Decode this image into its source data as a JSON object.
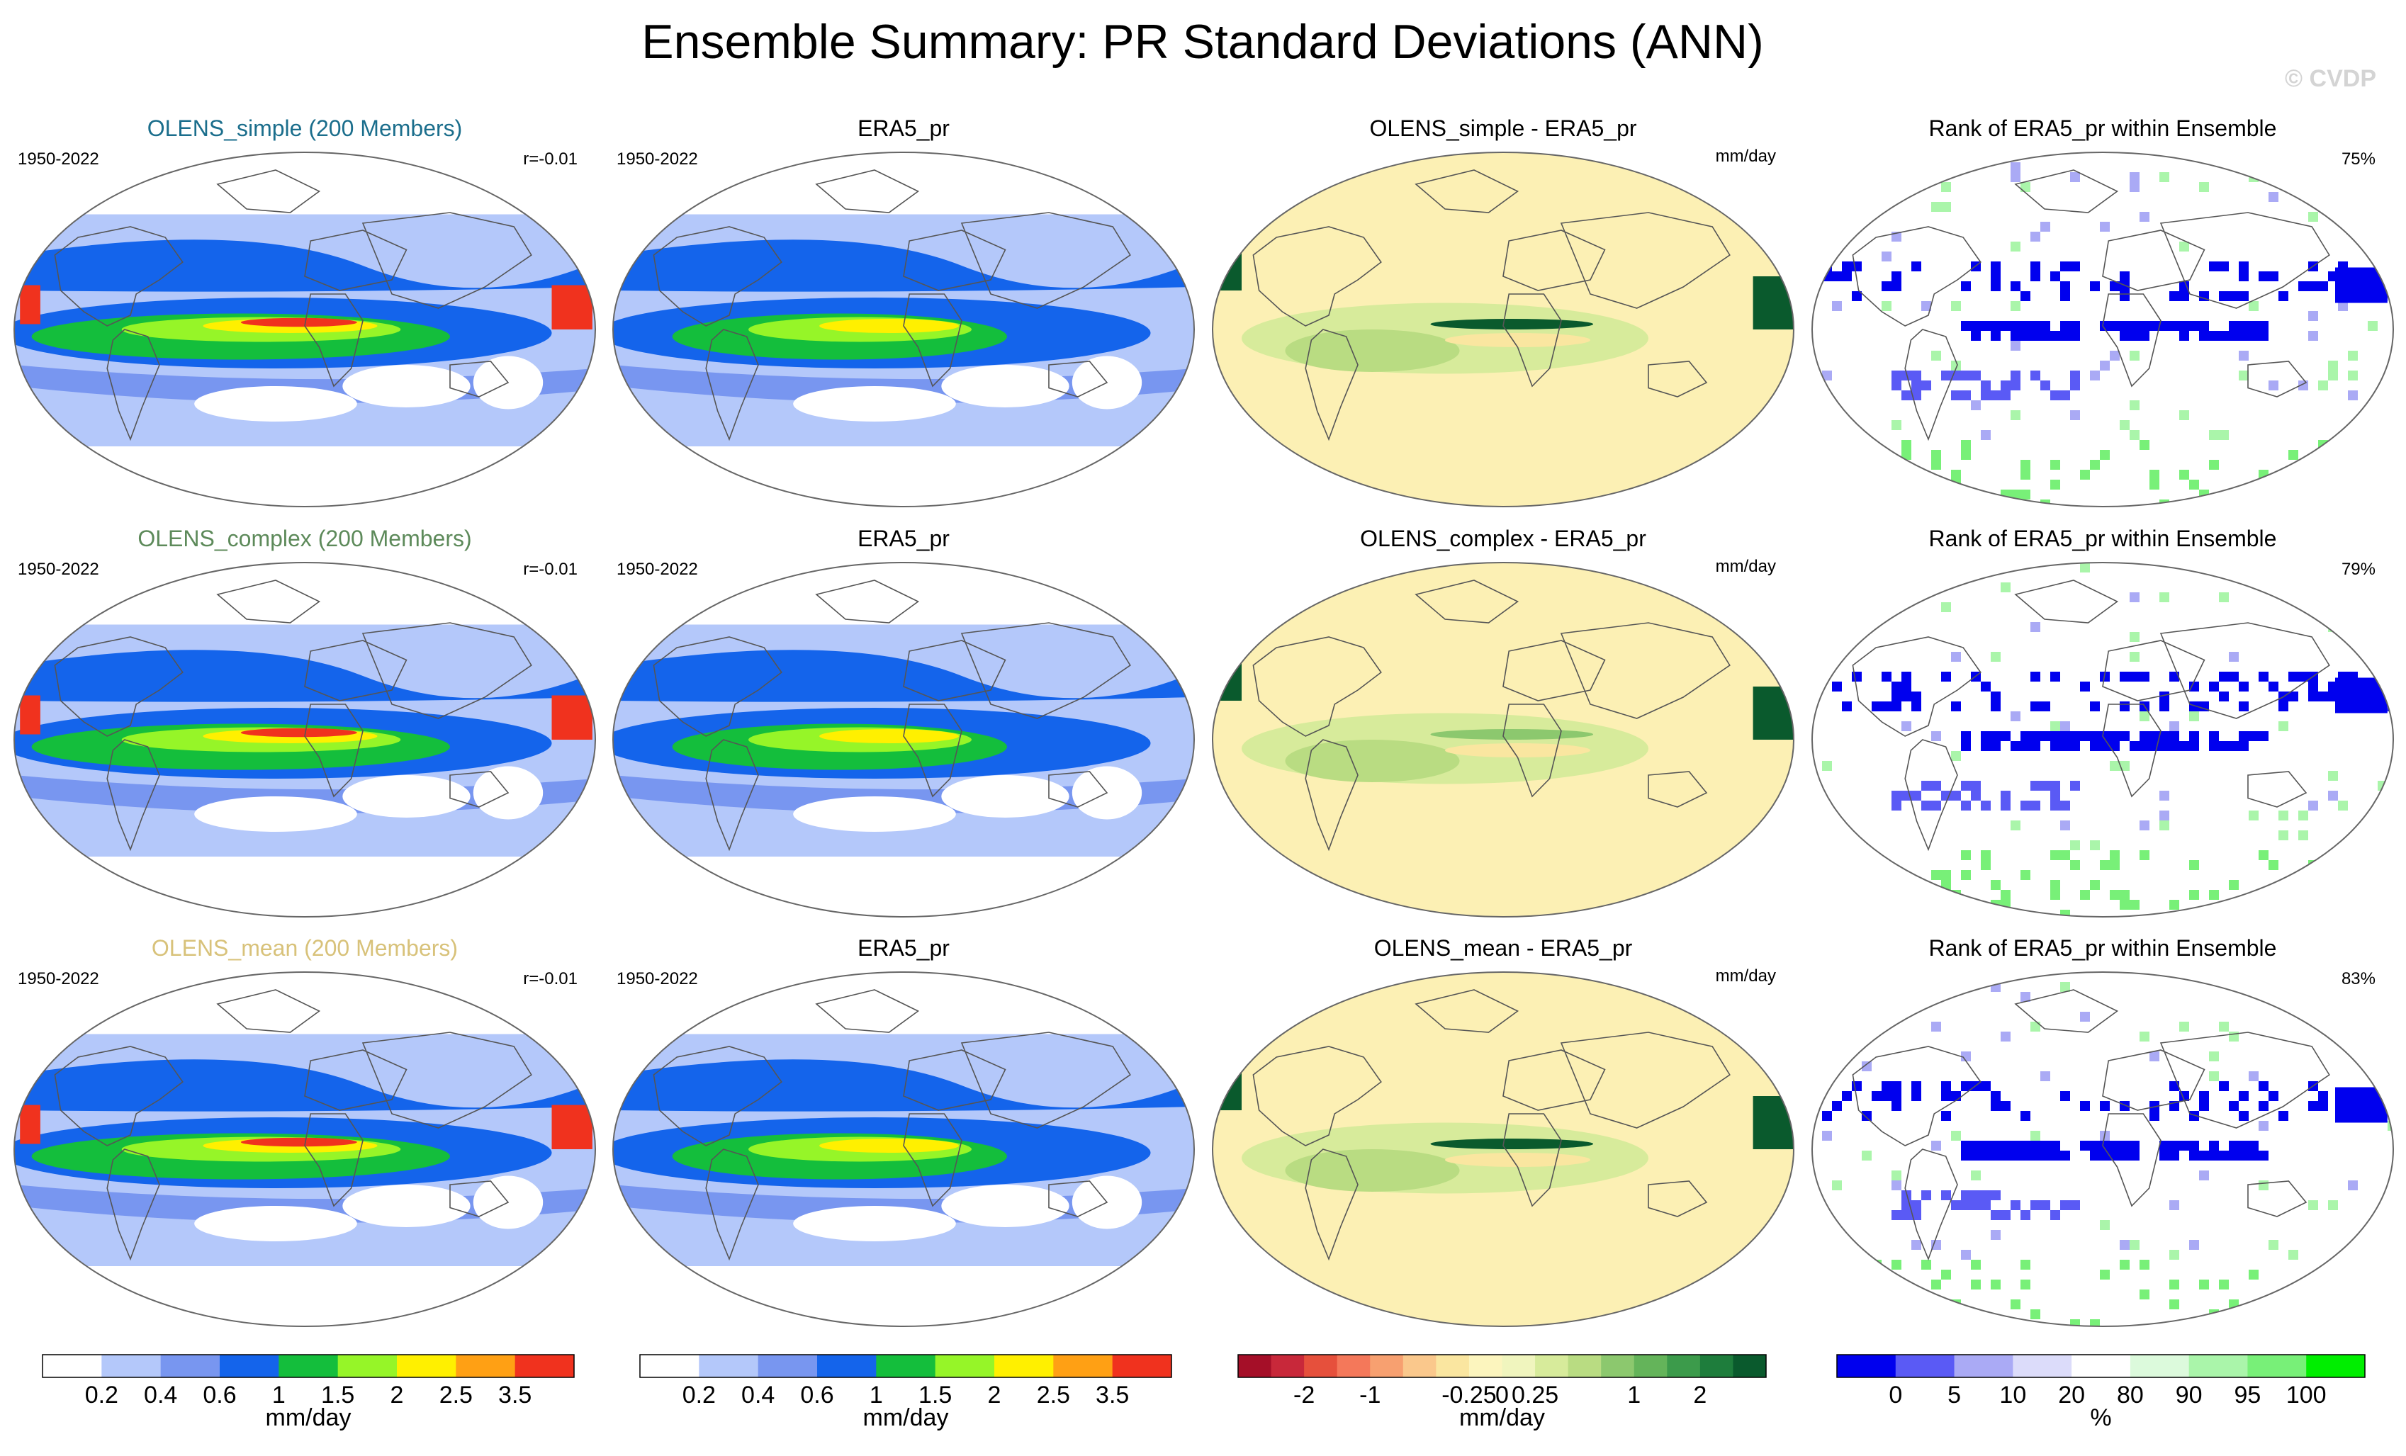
{
  "title": "Ensemble Summary: PR Standard Deviations (ANN)",
  "watermark": "© CVDP",
  "map_labels": {
    "period": "1950-2022",
    "units": "mm/day"
  },
  "rows": [
    {
      "ensemble_title": "OLENS_simple (200 Members)",
      "ensemble_color": "#1b6e8c",
      "pattern_corr": "r=-0.01",
      "obs_title": "ERA5_pr",
      "diff_title": "OLENS_simple - ERA5_pr",
      "rank_title": "Rank of ERA5_pr within Ensemble",
      "rank_pct": "75%"
    },
    {
      "ensemble_title": "OLENS_complex (200 Members)",
      "ensemble_color": "#5d8a5a",
      "pattern_corr": "r=-0.01",
      "obs_title": "ERA5_pr",
      "diff_title": "OLENS_complex - ERA5_pr",
      "rank_title": "Rank of ERA5_pr within Ensemble",
      "rank_pct": "79%"
    },
    {
      "ensemble_title": "OLENS_mean (200 Members)",
      "ensemble_color": "#d8c27a",
      "pattern_corr": "r=-0.01",
      "obs_title": "ERA5_pr",
      "diff_title": "OLENS_mean - ERA5_pr",
      "rank_title": "Rank of ERA5_pr within Ensemble",
      "rank_pct": "83%"
    }
  ],
  "chart_data": {
    "type": "heatmap",
    "projection": "Robinson global maps",
    "variable": "PR standard deviation",
    "season": "ANN",
    "period": "1950-2022",
    "colorbars": [
      {
        "name": "std",
        "units": "mm/day",
        "colors": [
          "#ffffff",
          "#b4c8fa",
          "#7896f0",
          "#1464eb",
          "#14be3c",
          "#96f528",
          "#fff000",
          "#ffa014",
          "#f0321e"
        ],
        "tick_labels": [
          "0.2",
          "0.4",
          "0.6",
          "1",
          "1.5",
          "2",
          "2.5",
          "3.5"
        ]
      },
      {
        "name": "std",
        "units": "mm/day",
        "colors": [
          "#ffffff",
          "#b4c8fa",
          "#7896f0",
          "#1464eb",
          "#14be3c",
          "#96f528",
          "#fff000",
          "#ffa014",
          "#f0321e"
        ],
        "tick_labels": [
          "0.2",
          "0.4",
          "0.6",
          "1",
          "1.5",
          "2",
          "2.5",
          "3.5"
        ]
      },
      {
        "name": "difference",
        "units": "mm/day",
        "colors": [
          "#a50f28",
          "#c8283a",
          "#e6503c",
          "#f4785a",
          "#f7a070",
          "#fac88c",
          "#fae6a0",
          "#fcf5be",
          "#f0f5be",
          "#d7eb9b",
          "#b9dc82",
          "#8cc86e",
          "#64b45a",
          "#3c9b4b",
          "#1e7d3c",
          "#0a5a2d"
        ],
        "tick_labels": [
          "-2",
          "-1",
          "-0.25",
          "0",
          "0.25",
          "1",
          "2"
        ]
      },
      {
        "name": "rank",
        "units": "%",
        "colors": [
          "#0000ee",
          "#5a5af5",
          "#aaaaf5",
          "#dcdcfa",
          "#ffffff",
          "#dcfadc",
          "#aaf5aa",
          "#78f078",
          "#00ee00"
        ],
        "tick_labels": [
          "0",
          "5",
          "10",
          "20",
          "80",
          "90",
          "95",
          "100"
        ]
      }
    ]
  }
}
